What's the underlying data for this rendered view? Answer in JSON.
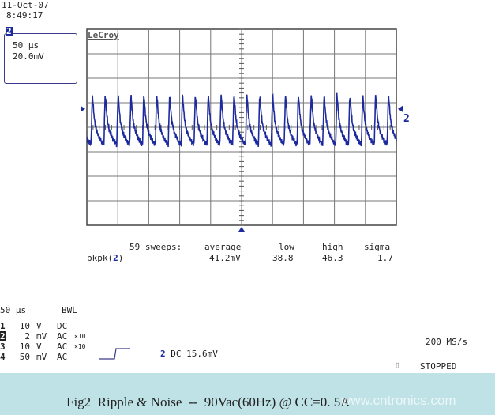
{
  "header": {
    "date": "11-Oct-07",
    "time": "8:49:17"
  },
  "channel_box": {
    "channel": "2",
    "timebase": "50 µs",
    "volts_per_div": "20.0mV"
  },
  "logo": "LeCroy",
  "measurement": {
    "sweeps_label": "59 sweeps:",
    "columns": [
      "average",
      "low",
      "high",
      "sigma"
    ],
    "row_label": "pkpk(",
    "row_channel": "2",
    "values": [
      "41.2mV",
      "38.8",
      "46.3",
      "1.7"
    ]
  },
  "settings": {
    "timebase": "50 µs",
    "bwl": "BWL",
    "channels": [
      {
        "num": "1",
        "scale": "10",
        "unit": "V",
        "coupling": "DC",
        "probe": ""
      },
      {
        "num": "2",
        "scale": "2",
        "unit": "mV",
        "coupling": "AC",
        "probe": "×10"
      },
      {
        "num": "3",
        "scale": "10",
        "unit": "V",
        "coupling": "AC",
        "probe": "×10"
      },
      {
        "num": "4",
        "scale": "50",
        "unit": "mV",
        "coupling": "AC",
        "probe": ""
      }
    ],
    "trigger_channel": "2",
    "trigger_info": "DC 15.6mV",
    "sample_rate": "200 MS/s",
    "status": "STOPPED"
  },
  "caption": "Fig2  Ripple & Noise  --  90Vac(60Hz) @ CC=0. 5A",
  "watermark": "www.cntronics.com",
  "colors": {
    "trace": "#1c2a9e",
    "grid": "#777777",
    "caption_bg": "#bfe2e6"
  },
  "chart_data": {
    "type": "line",
    "title": "",
    "xlabel": "",
    "ylabel": "",
    "xlim_us": [
      0,
      500
    ],
    "ylim_mV": [
      -80,
      80
    ],
    "x_divisions": 10,
    "y_divisions": 8,
    "grid": true,
    "series": [
      {
        "channel": "2",
        "period_us": 20.8,
        "one_period": {
          "t_us": [
            0,
            1,
            2,
            3,
            4,
            6,
            9,
            13,
            17,
            20.8
          ],
          "mV": [
            -14,
            8,
            26,
            22,
            14,
            4,
            -3,
            -8,
            -12,
            -14
          ]
        }
      }
    ]
  }
}
